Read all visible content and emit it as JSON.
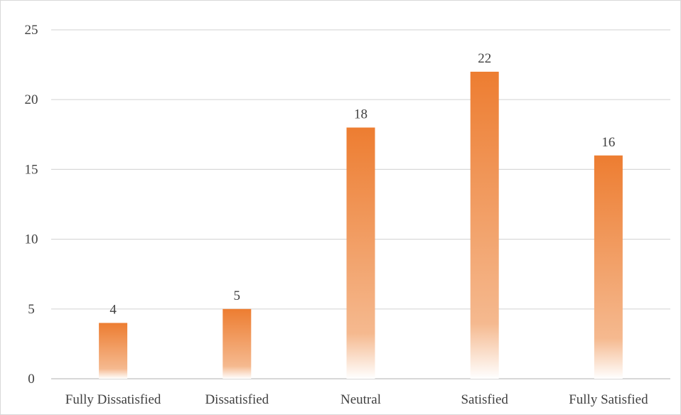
{
  "chart_data": {
    "type": "bar",
    "categories": [
      "Fully Dissatisfied",
      "Dissatisfied",
      "Neutral",
      "Satisfied",
      "Fully Satisfied"
    ],
    "values": [
      4,
      5,
      18,
      22,
      16
    ],
    "y_ticks": [
      "0",
      "5",
      "10",
      "15",
      "20",
      "25"
    ],
    "ylim": [
      0,
      25
    ],
    "grid": true,
    "legend": "none",
    "data_labels": true,
    "colors": {
      "bar_top": "#ed7d31",
      "bar_bottom": "#ffffff",
      "gridline": "#d9d9d9",
      "axis_line": "#bfbfbf",
      "text": "#404040"
    }
  }
}
